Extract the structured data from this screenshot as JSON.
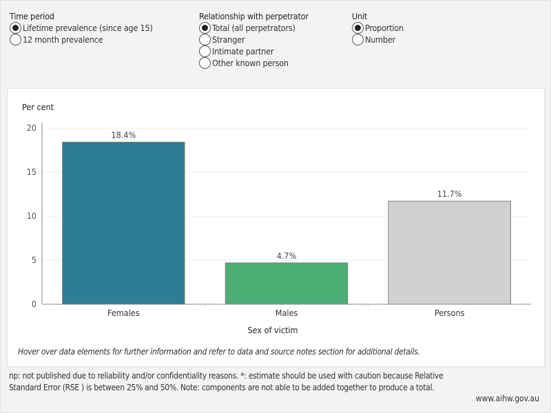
{
  "filters": {
    "time_period": {
      "title": "Time period",
      "options": [
        {
          "label": "Lifetime prevalence (since age 15)",
          "selected": true
        },
        {
          "label": "12 month prevalence",
          "selected": false
        }
      ]
    },
    "relationship": {
      "title": "Relationship with perpetrator",
      "options": [
        {
          "label": "Total (all perpetrators)",
          "selected": true
        },
        {
          "label": "Stranger",
          "selected": false
        },
        {
          "label": "Intimate partner",
          "selected": false
        },
        {
          "label": "Other known person",
          "selected": false
        }
      ]
    },
    "unit": {
      "title": "Unit",
      "options": [
        {
          "label": "Proportion",
          "selected": true
        },
        {
          "label": "Number",
          "selected": false
        }
      ]
    }
  },
  "chart_data": {
    "type": "bar",
    "title": "",
    "ylabel": "Per cent",
    "xlabel": "Sex of victim",
    "categories": [
      "Females",
      "Males",
      "Persons"
    ],
    "values": [
      18.4,
      4.7,
      11.7
    ],
    "data_labels": [
      "18.4%",
      "4.7%",
      "11.7%"
    ],
    "colors": [
      "#2e7d97",
      "#4caf76",
      "#d0d1d0"
    ],
    "ylim": [
      0,
      20
    ],
    "yticks": [
      0,
      5,
      10,
      15,
      20
    ],
    "grid": true,
    "legend": "none"
  },
  "notes": {
    "hover": "Hover over data elements for further information and refer to data and source notes section for additional details.",
    "footnote": "np: not published due to reliability and/or confidentiality reasons. *: estimate should be used with caution because Relative Standard Error (RSE ) is between 25% and 50%. Note: components are not able to be added together to produce a total.",
    "website": "www.aihw.gov.au"
  }
}
